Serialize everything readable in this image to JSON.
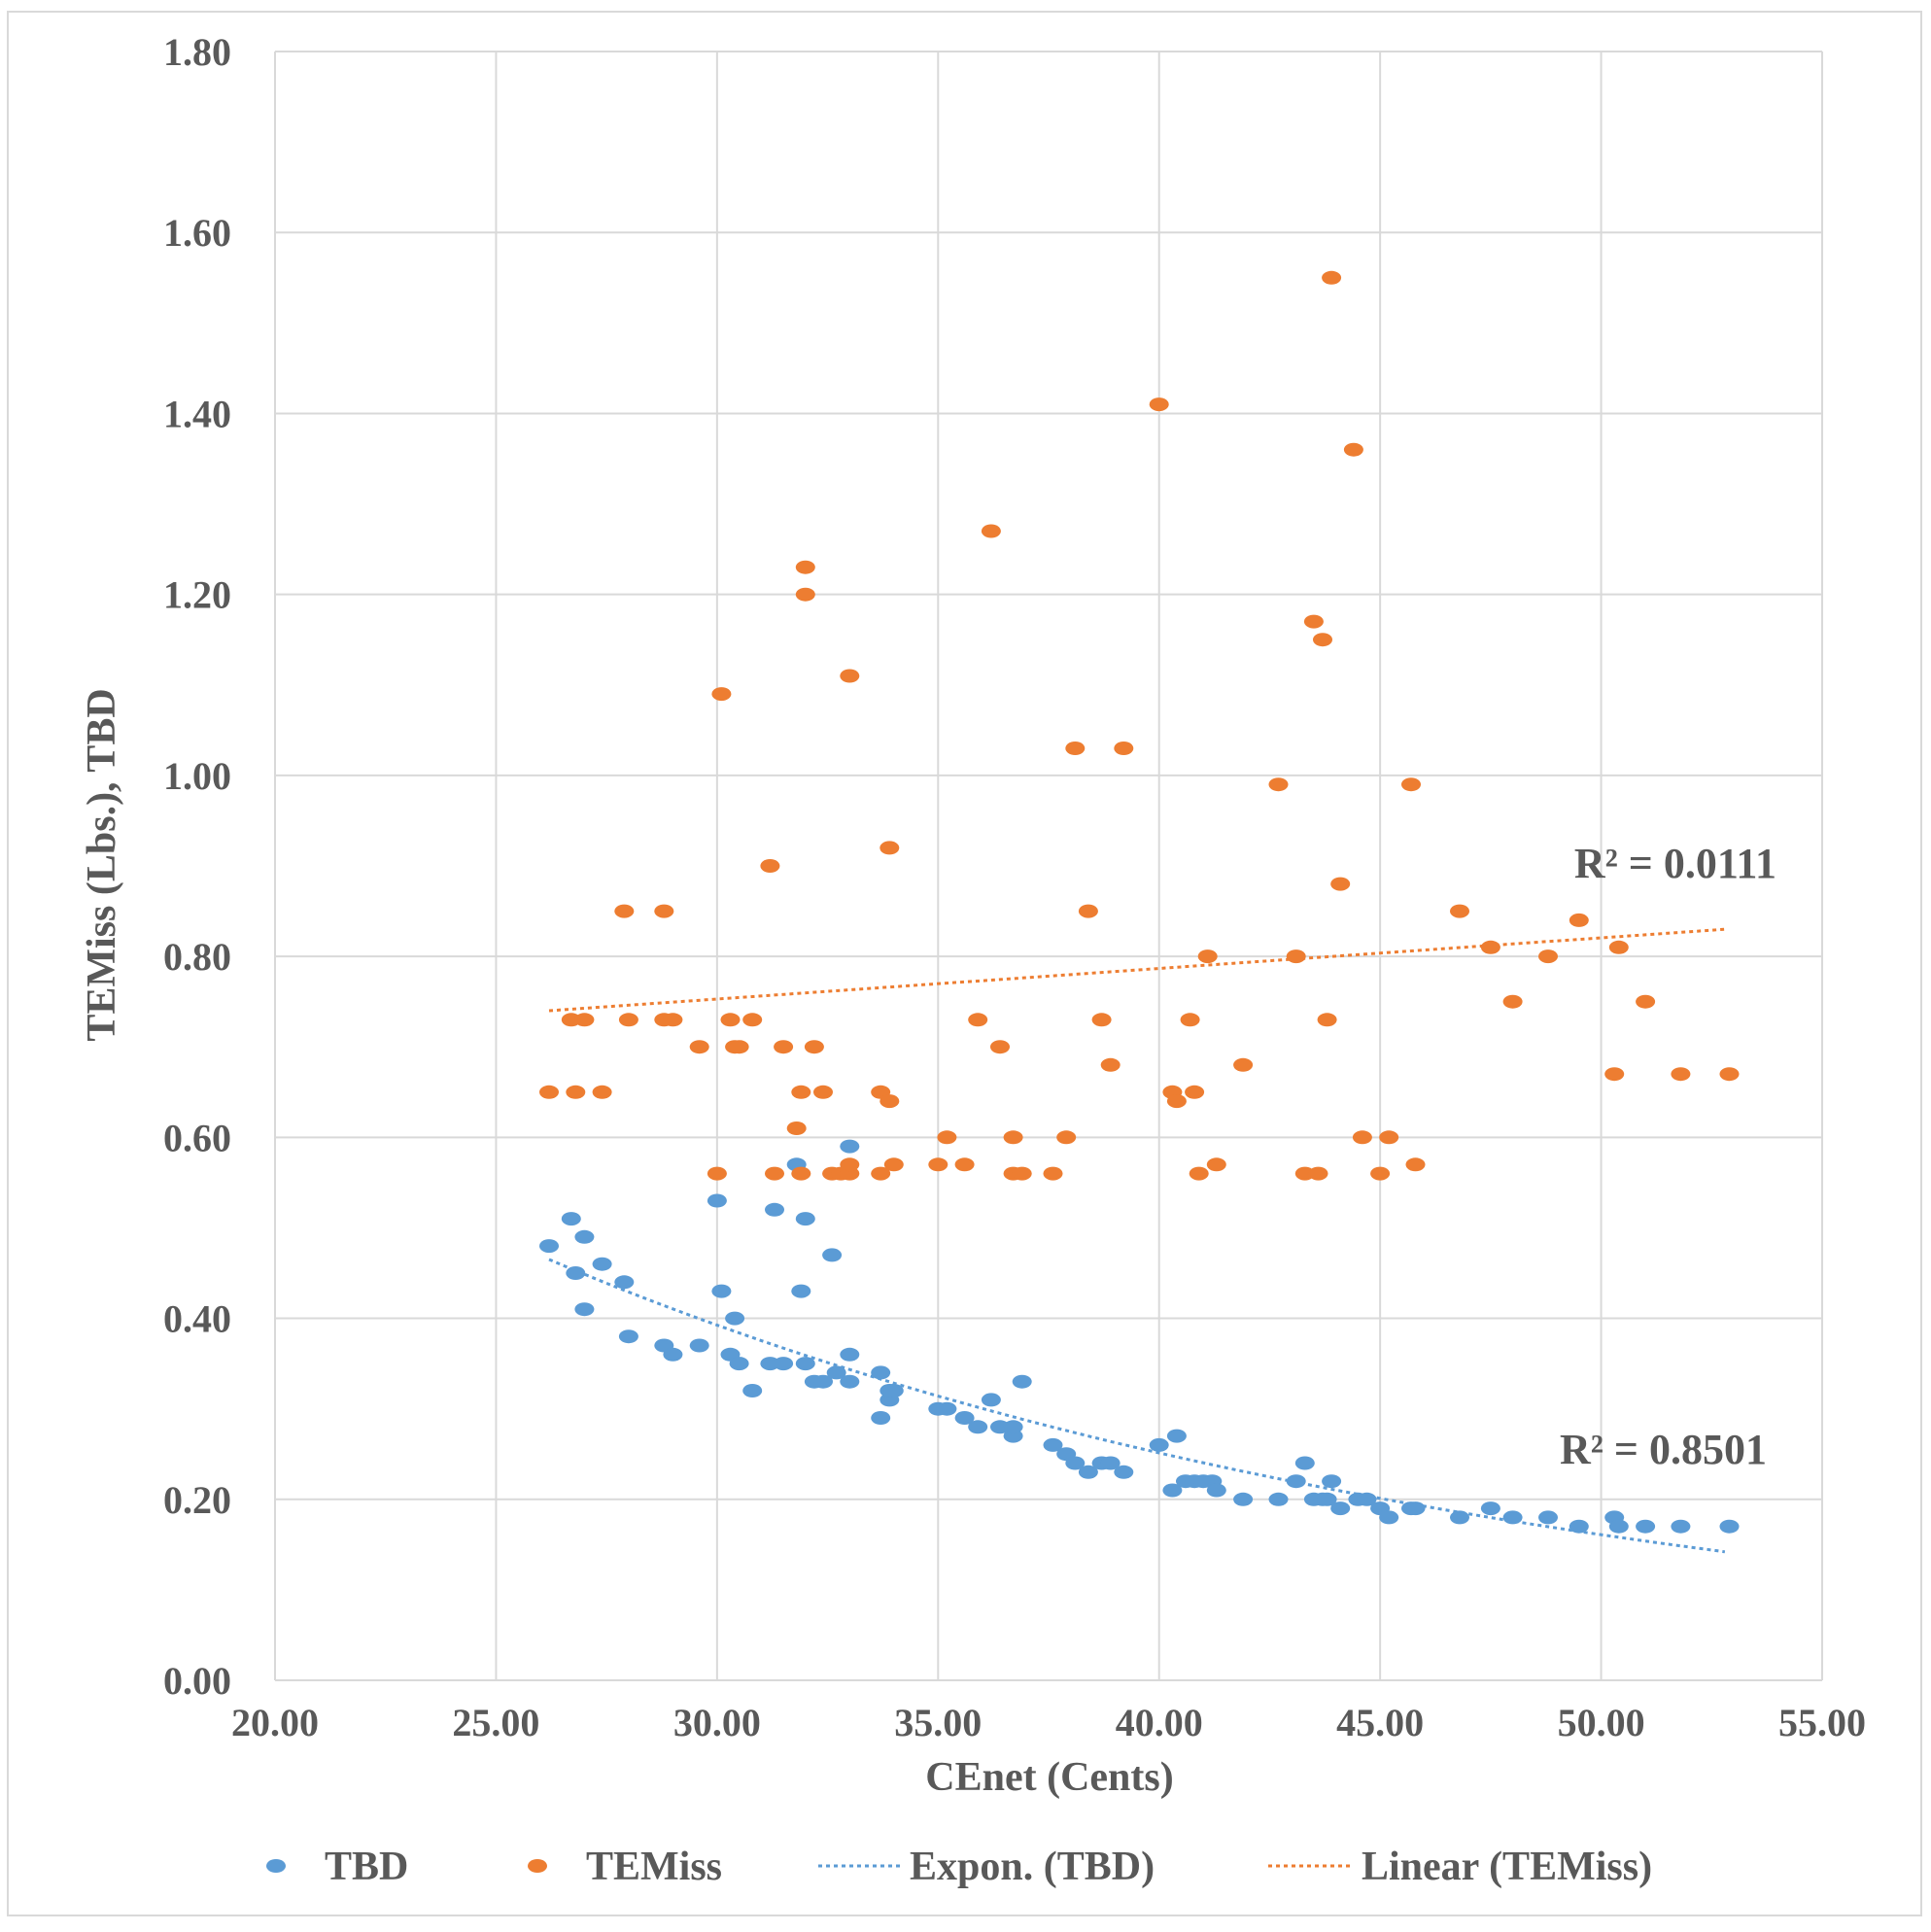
{
  "chart_data": {
    "type": "scatter",
    "xlabel": "CEnet (Cents)",
    "ylabel": "TEMiss (Lbs.), TBD",
    "xlim": [
      20,
      55
    ],
    "ylim": [
      0,
      1.8
    ],
    "x_ticks": [
      "20.00",
      "25.00",
      "30.00",
      "35.00",
      "40.00",
      "45.00",
      "50.00",
      "55.00"
    ],
    "y_ticks": [
      "0.00",
      "0.20",
      "0.40",
      "0.60",
      "0.80",
      "1.00",
      "1.20",
      "1.40",
      "1.60",
      "1.80"
    ],
    "grid": true,
    "legend_position": "bottom",
    "series": [
      {
        "name": "TBD",
        "color": "#5B9BD5",
        "points": [
          [
            26.2,
            0.48
          ],
          [
            26.7,
            0.51
          ],
          [
            26.8,
            0.45
          ],
          [
            27.0,
            0.49
          ],
          [
            27.0,
            0.41
          ],
          [
            27.4,
            0.46
          ],
          [
            27.9,
            0.44
          ],
          [
            28.0,
            0.38
          ],
          [
            28.8,
            0.37
          ],
          [
            29.0,
            0.36
          ],
          [
            29.6,
            0.37
          ],
          [
            30.0,
            0.53
          ],
          [
            30.1,
            0.43
          ],
          [
            30.3,
            0.36
          ],
          [
            30.4,
            0.4
          ],
          [
            30.5,
            0.35
          ],
          [
            30.8,
            0.32
          ],
          [
            31.2,
            0.35
          ],
          [
            31.3,
            0.52
          ],
          [
            31.5,
            0.35
          ],
          [
            31.8,
            0.57
          ],
          [
            31.9,
            0.43
          ],
          [
            32.0,
            0.51
          ],
          [
            32.0,
            0.35
          ],
          [
            32.2,
            0.33
          ],
          [
            32.4,
            0.33
          ],
          [
            32.6,
            0.47
          ],
          [
            32.7,
            0.34
          ],
          [
            33.0,
            0.36
          ],
          [
            33.0,
            0.33
          ],
          [
            33.0,
            0.59
          ],
          [
            33.7,
            0.34
          ],
          [
            33.7,
            0.29
          ],
          [
            33.9,
            0.31
          ],
          [
            33.9,
            0.32
          ],
          [
            34.0,
            0.32
          ],
          [
            35.0,
            0.3
          ],
          [
            35.2,
            0.3
          ],
          [
            35.6,
            0.29
          ],
          [
            35.9,
            0.28
          ],
          [
            36.2,
            0.31
          ],
          [
            36.4,
            0.28
          ],
          [
            36.7,
            0.27
          ],
          [
            36.7,
            0.28
          ],
          [
            36.9,
            0.33
          ],
          [
            37.6,
            0.26
          ],
          [
            37.9,
            0.25
          ],
          [
            38.1,
            0.24
          ],
          [
            38.4,
            0.23
          ],
          [
            38.7,
            0.24
          ],
          [
            38.9,
            0.24
          ],
          [
            39.2,
            0.23
          ],
          [
            40.0,
            0.26
          ],
          [
            40.3,
            0.21
          ],
          [
            40.4,
            0.27
          ],
          [
            40.6,
            0.22
          ],
          [
            40.8,
            0.22
          ],
          [
            41.0,
            0.22
          ],
          [
            41.2,
            0.22
          ],
          [
            41.3,
            0.21
          ],
          [
            41.9,
            0.2
          ],
          [
            42.7,
            0.2
          ],
          [
            43.1,
            0.22
          ],
          [
            43.3,
            0.24
          ],
          [
            43.5,
            0.2
          ],
          [
            43.7,
            0.2
          ],
          [
            43.8,
            0.2
          ],
          [
            43.9,
            0.22
          ],
          [
            44.1,
            0.19
          ],
          [
            44.5,
            0.2
          ],
          [
            44.7,
            0.2
          ],
          [
            45.0,
            0.19
          ],
          [
            45.2,
            0.18
          ],
          [
            45.7,
            0.19
          ],
          [
            45.8,
            0.19
          ],
          [
            46.8,
            0.18
          ],
          [
            47.5,
            0.19
          ],
          [
            48.0,
            0.18
          ],
          [
            48.8,
            0.18
          ],
          [
            49.5,
            0.17
          ],
          [
            50.3,
            0.18
          ],
          [
            50.4,
            0.17
          ],
          [
            51.0,
            0.17
          ],
          [
            51.8,
            0.17
          ],
          [
            52.9,
            0.17
          ]
        ]
      },
      {
        "name": "TEMiss",
        "color": "#ED7D31",
        "points": [
          [
            26.2,
            0.65
          ],
          [
            26.7,
            0.73
          ],
          [
            26.8,
            0.65
          ],
          [
            27.0,
            0.73
          ],
          [
            27.4,
            0.65
          ],
          [
            27.9,
            0.85
          ],
          [
            28.0,
            0.73
          ],
          [
            28.8,
            0.85
          ],
          [
            28.8,
            0.73
          ],
          [
            29.0,
            0.73
          ],
          [
            29.6,
            0.7
          ],
          [
            30.0,
            0.56
          ],
          [
            30.1,
            1.09
          ],
          [
            30.3,
            0.73
          ],
          [
            30.4,
            0.7
          ],
          [
            30.5,
            0.7
          ],
          [
            30.8,
            0.73
          ],
          [
            31.2,
            0.9
          ],
          [
            31.3,
            0.56
          ],
          [
            31.5,
            0.7
          ],
          [
            31.8,
            0.61
          ],
          [
            31.9,
            0.65
          ],
          [
            32.0,
            1.23
          ],
          [
            32.0,
            1.2
          ],
          [
            31.9,
            0.56
          ],
          [
            32.2,
            0.7
          ],
          [
            32.4,
            0.65
          ],
          [
            32.6,
            0.56
          ],
          [
            32.8,
            0.56
          ],
          [
            33.0,
            0.56
          ],
          [
            33.0,
            1.11
          ],
          [
            33.0,
            0.57
          ],
          [
            33.7,
            0.65
          ],
          [
            33.7,
            0.56
          ],
          [
            33.9,
            0.64
          ],
          [
            33.9,
            0.92
          ],
          [
            34.0,
            0.57
          ],
          [
            35.0,
            0.57
          ],
          [
            35.2,
            0.6
          ],
          [
            35.6,
            0.57
          ],
          [
            35.9,
            0.73
          ],
          [
            36.2,
            1.27
          ],
          [
            36.4,
            0.7
          ],
          [
            36.7,
            0.6
          ],
          [
            36.7,
            0.56
          ],
          [
            36.9,
            0.56
          ],
          [
            37.6,
            0.56
          ],
          [
            37.9,
            0.6
          ],
          [
            38.1,
            1.03
          ],
          [
            38.4,
            0.85
          ],
          [
            38.7,
            0.73
          ],
          [
            38.9,
            0.68
          ],
          [
            39.2,
            1.03
          ],
          [
            40.0,
            1.41
          ],
          [
            40.3,
            0.65
          ],
          [
            40.4,
            0.64
          ],
          [
            40.7,
            0.73
          ],
          [
            40.8,
            0.65
          ],
          [
            40.9,
            0.56
          ],
          [
            41.1,
            0.8
          ],
          [
            41.3,
            0.57
          ],
          [
            41.9,
            0.68
          ],
          [
            42.7,
            0.99
          ],
          [
            43.1,
            0.8
          ],
          [
            43.3,
            0.56
          ],
          [
            43.5,
            1.17
          ],
          [
            43.6,
            0.56
          ],
          [
            43.7,
            1.15
          ],
          [
            43.8,
            0.73
          ],
          [
            43.9,
            1.55
          ],
          [
            44.1,
            0.88
          ],
          [
            44.4,
            1.36
          ],
          [
            44.6,
            0.6
          ],
          [
            45.0,
            0.56
          ],
          [
            45.2,
            0.6
          ],
          [
            45.7,
            0.99
          ],
          [
            45.8,
            0.57
          ],
          [
            46.8,
            0.85
          ],
          [
            47.5,
            0.81
          ],
          [
            48.0,
            0.75
          ],
          [
            48.8,
            0.8
          ],
          [
            49.5,
            0.84
          ],
          [
            50.3,
            0.67
          ],
          [
            50.4,
            0.81
          ],
          [
            51.0,
            0.75
          ],
          [
            51.8,
            0.67
          ],
          [
            52.9,
            0.67
          ]
        ]
      }
    ],
    "trendlines": [
      {
        "name": "Expon. (TBD)",
        "type": "exponential",
        "color": "#5B9BD5",
        "start": [
          26.2,
          0.465
        ],
        "end": [
          52.8,
          0.142
        ],
        "r2_label": "R² = 0.8501"
      },
      {
        "name": "Linear (TEMiss)",
        "type": "linear",
        "color": "#ED7D31",
        "start": [
          26.2,
          0.74
        ],
        "end": [
          52.8,
          0.83
        ],
        "r2_label": "R² = 0.0111"
      }
    ]
  }
}
